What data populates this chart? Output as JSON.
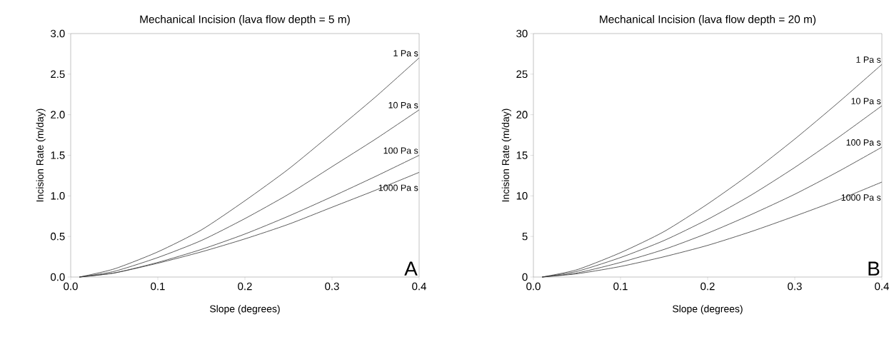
{
  "chart_data": [
    {
      "type": "line",
      "title": "Mechanical Incision (lava flow depth = 5 m)",
      "xlabel": "Slope (degrees)",
      "ylabel": "Incision Rate (m/day)",
      "x": [
        0.01,
        0.05,
        0.1,
        0.15,
        0.2,
        0.25,
        0.3,
        0.35,
        0.4
      ],
      "series": [
        {
          "name": "1 Pa s",
          "color": "#333333",
          "values": [
            0.0,
            0.1,
            0.31,
            0.58,
            0.94,
            1.33,
            1.77,
            2.22,
            2.7
          ]
        },
        {
          "name": "10 Pa s",
          "color": "#333333",
          "values": [
            0.0,
            0.07,
            0.24,
            0.45,
            0.72,
            1.02,
            1.36,
            1.7,
            2.06
          ]
        },
        {
          "name": "100 Pa s",
          "color": "#333333",
          "values": [
            0.0,
            0.05,
            0.18,
            0.34,
            0.53,
            0.75,
            0.99,
            1.24,
            1.5
          ]
        },
        {
          "name": "1000 Pa s",
          "color": "#333333",
          "values": [
            0.0,
            0.05,
            0.17,
            0.31,
            0.47,
            0.65,
            0.86,
            1.07,
            1.29
          ]
        }
      ],
      "xlim": [
        0,
        0.4
      ],
      "ylim": [
        0,
        3
      ],
      "xticks": [
        {
          "value": 0,
          "label": "0.0"
        },
        0.1,
        0.2,
        0.3,
        0.4
      ],
      "yticks": [
        {
          "value": 0,
          "label": "0.0"
        },
        0.5,
        {
          "value": 1,
          "label": "1.0"
        },
        1.5,
        {
          "value": 2,
          "label": "2.0"
        },
        2.5,
        {
          "value": 3,
          "label": "3.0"
        }
      ],
      "annotations": [
        "A"
      ]
    },
    {
      "type": "line",
      "title": "Mechanical Incision (lava flow depth = 20 m)",
      "xlabel": "Slope (degrees)",
      "ylabel": "Incision Rate (m/day)",
      "x": [
        0.01,
        0.05,
        0.1,
        0.15,
        0.2,
        0.25,
        0.3,
        0.35,
        0.4
      ],
      "series": [
        {
          "name": "1 Pa s",
          "color": "#333333",
          "values": [
            0.0,
            0.9,
            3.0,
            5.6,
            9.0,
            12.8,
            17.0,
            21.5,
            26.2
          ]
        },
        {
          "name": "10 Pa s",
          "color": "#333333",
          "values": [
            0.0,
            0.7,
            2.4,
            4.5,
            7.1,
            10.1,
            13.5,
            17.2,
            21.1
          ]
        },
        {
          "name": "100 Pa s",
          "color": "#333333",
          "values": [
            0.0,
            0.5,
            1.8,
            3.4,
            5.4,
            7.7,
            10.2,
            13.0,
            16.0
          ]
        },
        {
          "name": "1000 Pa s",
          "color": "#333333",
          "values": [
            0.0,
            0.4,
            1.3,
            2.5,
            3.9,
            5.6,
            7.5,
            9.5,
            11.7
          ]
        }
      ],
      "xlim": [
        0,
        0.4
      ],
      "ylim": [
        0,
        30
      ],
      "xticks": [
        {
          "value": 0,
          "label": "0.0"
        },
        0.1,
        0.2,
        0.3,
        0.4
      ],
      "yticks": [
        0,
        5,
        10,
        15,
        20,
        25,
        30
      ],
      "annotations": [
        "B"
      ]
    }
  ]
}
